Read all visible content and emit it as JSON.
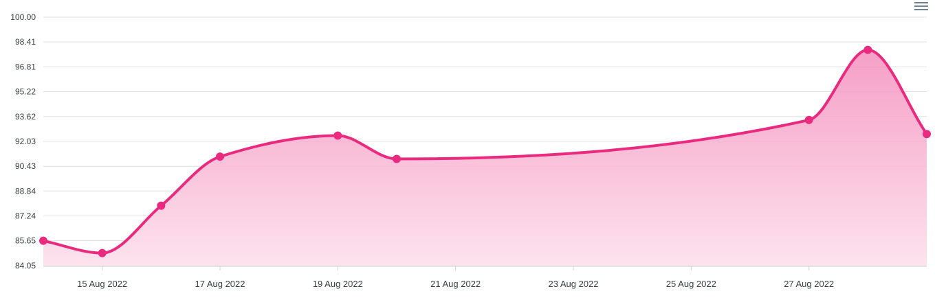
{
  "toolbar": {
    "menu_icon": "hamburger-menu-icon"
  },
  "colors": {
    "line": "#ea2a7f",
    "fill_top": "#f48fbd",
    "fill_bottom": "#fde0ec",
    "grid": "#e0e0e0",
    "axis": "#cfd3d6",
    "text": "#373d3f"
  },
  "chart_data": {
    "type": "area",
    "title": "",
    "xlabel": "",
    "ylabel": "",
    "x": [
      "2022-08-14",
      "2022-08-15",
      "2022-08-16",
      "2022-08-17",
      "2022-08-19",
      "2022-08-20",
      "2022-08-27",
      "2022-08-28",
      "2022-08-29"
    ],
    "series": [
      {
        "values": [
          85.65,
          84.86,
          87.9,
          91.05,
          92.4,
          90.9,
          93.4,
          97.9,
          92.5
        ]
      }
    ],
    "ylim": [
      84.05,
      100.0
    ],
    "yticks": [
      "100.00",
      "98.41",
      "96.81",
      "95.22",
      "93.62",
      "92.03",
      "90.43",
      "88.84",
      "87.24",
      "85.65",
      "84.05"
    ],
    "xticks": [
      {
        "date": "2022-08-15",
        "label": "15 Aug 2022"
      },
      {
        "date": "2022-08-17",
        "label": "17 Aug 2022"
      },
      {
        "date": "2022-08-19",
        "label": "19 Aug 2022"
      },
      {
        "date": "2022-08-21",
        "label": "21 Aug 2022"
      },
      {
        "date": "2022-08-23",
        "label": "23 Aug 2022"
      },
      {
        "date": "2022-08-25",
        "label": "25 Aug 2022"
      },
      {
        "date": "2022-08-27",
        "label": "27 Aug 2022"
      }
    ],
    "xlim": [
      "2022-08-14",
      "2022-08-29"
    ],
    "grid": true,
    "legend": "none"
  }
}
